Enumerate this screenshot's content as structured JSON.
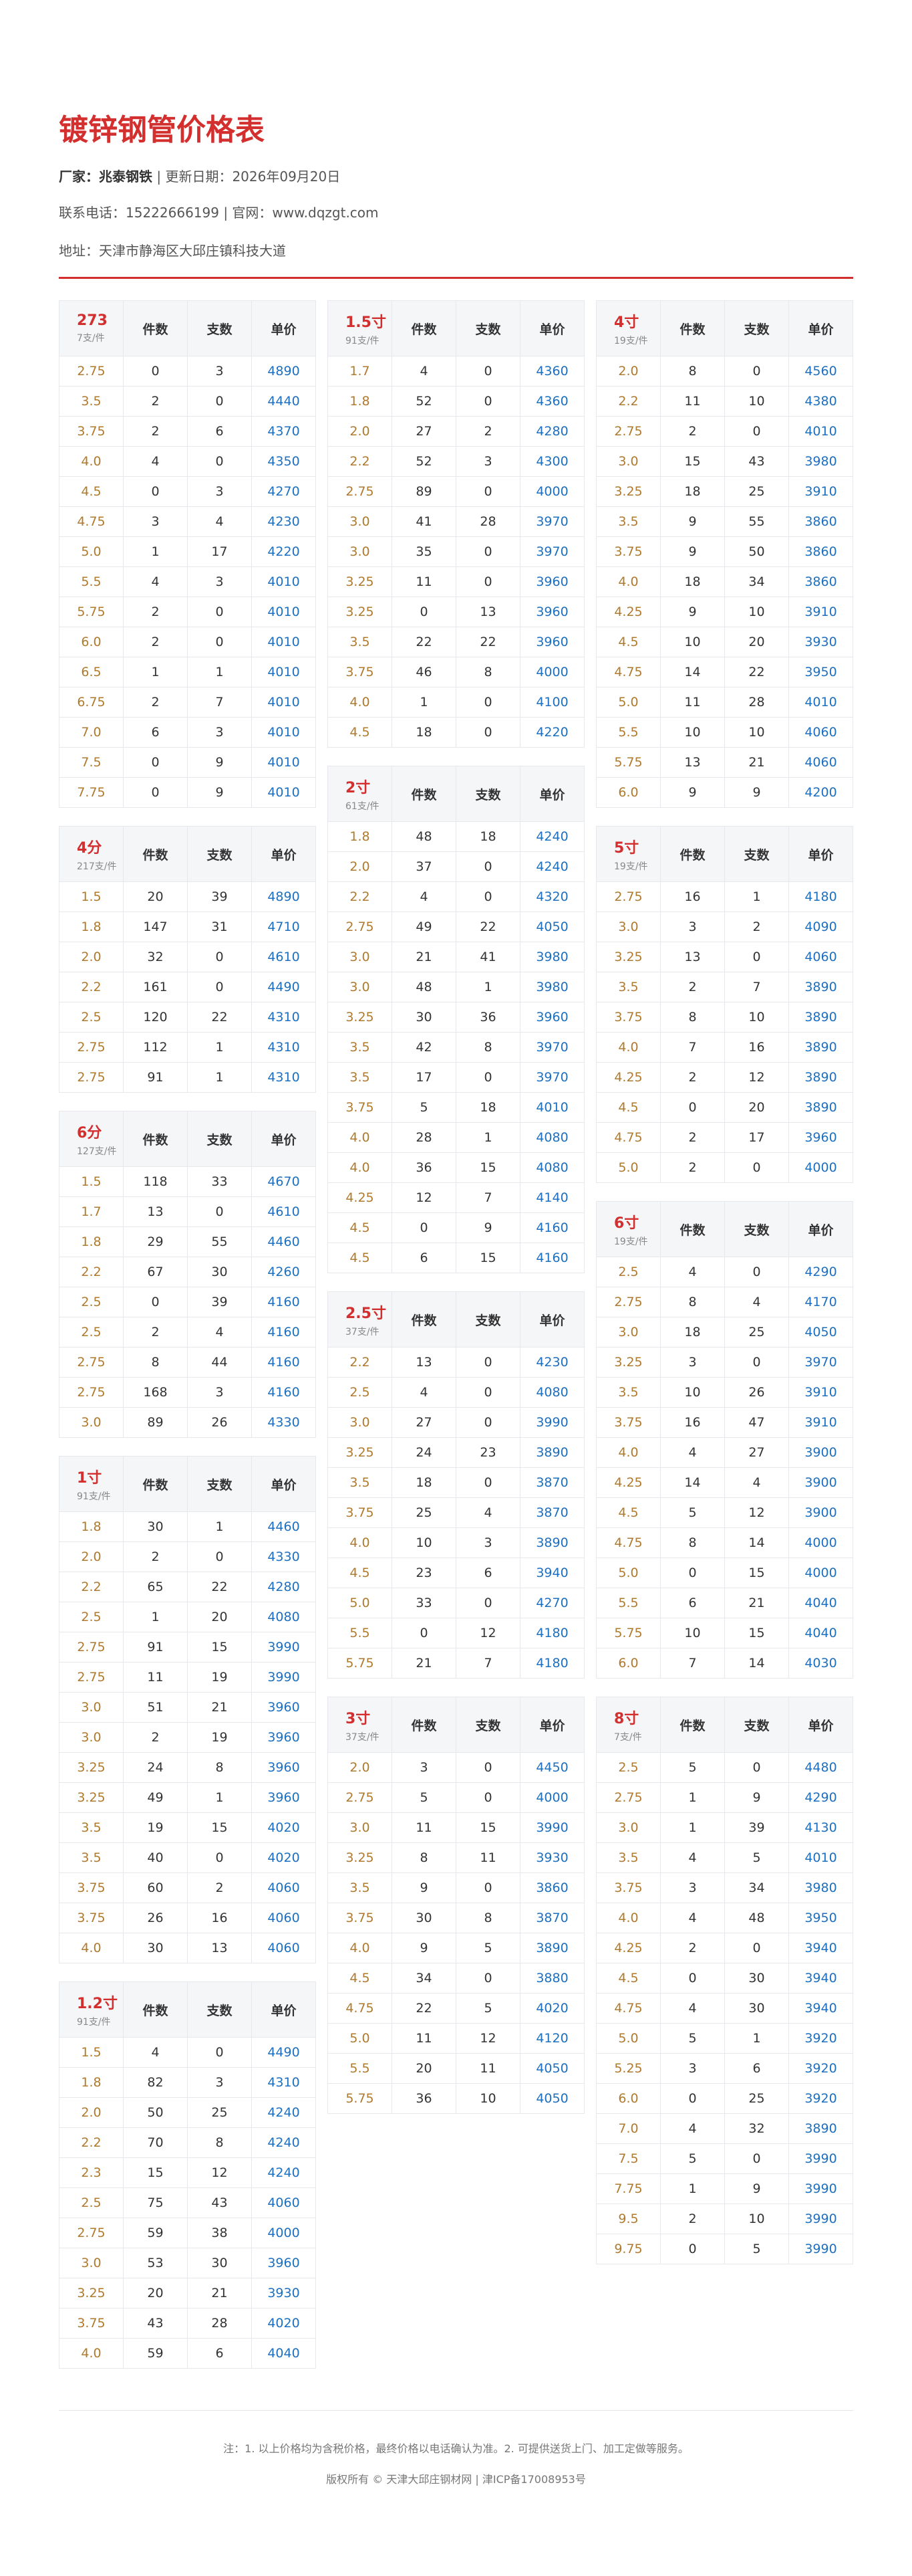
{
  "header": {
    "title": "镀锌钢管价格表",
    "maker": "厂家：兆泰钢铁",
    "updated": "| 更新日期：2026年09月20日",
    "contact": "联系电话：15222666199 | 官网：www.dqzgt.com",
    "address": "地址：天津市静海区大邱庄镇科技大道"
  },
  "columns": [
    "件数",
    "支数",
    "单价"
  ],
  "tables": [
    {
      "name": "273",
      "sub": "7支/件",
      "rows": [
        [
          "2.75",
          0,
          3,
          4890
        ],
        [
          "3.5",
          2,
          0,
          4440
        ],
        [
          "3.75",
          2,
          6,
          4370
        ],
        [
          "4.0",
          4,
          0,
          4350
        ],
        [
          "4.5",
          0,
          3,
          4270
        ],
        [
          "4.75",
          3,
          4,
          4230
        ],
        [
          "5.0",
          1,
          17,
          4220
        ],
        [
          "5.5",
          4,
          3,
          4010
        ],
        [
          "5.75",
          2,
          0,
          4010
        ],
        [
          "6.0",
          2,
          0,
          4010
        ],
        [
          "6.5",
          1,
          1,
          4010
        ],
        [
          "6.75",
          2,
          7,
          4010
        ],
        [
          "7.0",
          6,
          3,
          4010
        ],
        [
          "7.5",
          0,
          9,
          4010
        ],
        [
          "7.75",
          0,
          9,
          4010
        ]
      ]
    },
    {
      "name": "4分",
      "sub": "217支/件",
      "rows": [
        [
          "1.5",
          20,
          39,
          4890
        ],
        [
          "1.8",
          147,
          31,
          4710
        ],
        [
          "2.0",
          32,
          0,
          4610
        ],
        [
          "2.2",
          161,
          0,
          4490
        ],
        [
          "2.5",
          120,
          22,
          4310
        ],
        [
          "2.75",
          112,
          1,
          4310
        ],
        [
          "2.75",
          91,
          1,
          4310
        ]
      ]
    },
    {
      "name": "6分",
      "sub": "127支/件",
      "rows": [
        [
          "1.5",
          118,
          33,
          4670
        ],
        [
          "1.7",
          13,
          0,
          4610
        ],
        [
          "1.8",
          29,
          55,
          4460
        ],
        [
          "2.2",
          67,
          30,
          4260
        ],
        [
          "2.5",
          0,
          39,
          4160
        ],
        [
          "2.5",
          2,
          4,
          4160
        ],
        [
          "2.75",
          8,
          44,
          4160
        ],
        [
          "2.75",
          168,
          3,
          4160
        ],
        [
          "3.0",
          89,
          26,
          4330
        ]
      ]
    },
    {
      "name": "1寸",
      "sub": "91支/件",
      "rows": [
        [
          "1.8",
          30,
          1,
          4460
        ],
        [
          "2.0",
          2,
          0,
          4330
        ],
        [
          "2.2",
          65,
          22,
          4280
        ],
        [
          "2.5",
          1,
          20,
          4080
        ],
        [
          "2.75",
          91,
          15,
          3990
        ],
        [
          "2.75",
          11,
          19,
          3990
        ],
        [
          "3.0",
          51,
          21,
          3960
        ],
        [
          "3.0",
          2,
          19,
          3960
        ],
        [
          "3.25",
          24,
          8,
          3960
        ],
        [
          "3.25",
          49,
          1,
          3960
        ],
        [
          "3.5",
          19,
          15,
          4020
        ],
        [
          "3.5",
          40,
          0,
          4020
        ],
        [
          "3.75",
          60,
          2,
          4060
        ],
        [
          "3.75",
          26,
          16,
          4060
        ],
        [
          "4.0",
          30,
          13,
          4060
        ]
      ]
    },
    {
      "name": "1.2寸",
      "sub": "91支/件",
      "rows": [
        [
          "1.5",
          4,
          0,
          4490
        ],
        [
          "1.8",
          82,
          3,
          4310
        ],
        [
          "2.0",
          50,
          25,
          4240
        ],
        [
          "2.2",
          70,
          8,
          4240
        ],
        [
          "2.3",
          15,
          12,
          4240
        ],
        [
          "2.5",
          75,
          43,
          4060
        ],
        [
          "2.75",
          59,
          38,
          4000
        ],
        [
          "3.0",
          53,
          30,
          3960
        ],
        [
          "3.25",
          20,
          21,
          3930
        ],
        [
          "3.75",
          43,
          28,
          4020
        ],
        [
          "4.0",
          59,
          6,
          4040
        ]
      ]
    },
    {
      "name": "1.5寸",
      "sub": "91支/件",
      "rows": [
        [
          "1.7",
          4,
          0,
          4360
        ],
        [
          "1.8",
          52,
          0,
          4360
        ],
        [
          "2.0",
          27,
          2,
          4280
        ],
        [
          "2.2",
          52,
          3,
          4300
        ],
        [
          "2.75",
          89,
          0,
          4000
        ],
        [
          "3.0",
          41,
          28,
          3970
        ],
        [
          "3.0",
          35,
          0,
          3970
        ],
        [
          "3.25",
          11,
          0,
          3960
        ],
        [
          "3.25",
          0,
          13,
          3960
        ],
        [
          "3.5",
          22,
          22,
          3960
        ],
        [
          "3.75",
          46,
          8,
          4000
        ],
        [
          "4.0",
          1,
          0,
          4100
        ],
        [
          "4.5",
          18,
          0,
          4220
        ]
      ]
    },
    {
      "name": "2寸",
      "sub": "61支/件",
      "rows": [
        [
          "1.8",
          48,
          18,
          4240
        ],
        [
          "2.0",
          37,
          0,
          4240
        ],
        [
          "2.2",
          4,
          0,
          4320
        ],
        [
          "2.75",
          49,
          22,
          4050
        ],
        [
          "3.0",
          21,
          41,
          3980
        ],
        [
          "3.0",
          48,
          1,
          3980
        ],
        [
          "3.25",
          30,
          36,
          3960
        ],
        [
          "3.5",
          42,
          8,
          3970
        ],
        [
          "3.5",
          17,
          0,
          3970
        ],
        [
          "3.75",
          5,
          18,
          4010
        ],
        [
          "4.0",
          28,
          1,
          4080
        ],
        [
          "4.0",
          36,
          15,
          4080
        ],
        [
          "4.25",
          12,
          7,
          4140
        ],
        [
          "4.5",
          0,
          9,
          4160
        ],
        [
          "4.5",
          6,
          15,
          4160
        ]
      ]
    },
    {
      "name": "2.5寸",
      "sub": "37支/件",
      "rows": [
        [
          "2.2",
          13,
          0,
          4230
        ],
        [
          "2.5",
          4,
          0,
          4080
        ],
        [
          "3.0",
          27,
          0,
          3990
        ],
        [
          "3.25",
          24,
          23,
          3890
        ],
        [
          "3.5",
          18,
          0,
          3870
        ],
        [
          "3.75",
          25,
          4,
          3870
        ],
        [
          "4.0",
          10,
          3,
          3890
        ],
        [
          "4.5",
          23,
          6,
          3940
        ],
        [
          "5.0",
          33,
          0,
          4270
        ],
        [
          "5.5",
          0,
          12,
          4180
        ],
        [
          "5.75",
          21,
          7,
          4180
        ]
      ]
    },
    {
      "name": "3寸",
      "sub": "37支/件",
      "rows": [
        [
          "2.0",
          3,
          0,
          4450
        ],
        [
          "2.75",
          5,
          0,
          4000
        ],
        [
          "3.0",
          11,
          15,
          3990
        ],
        [
          "3.25",
          8,
          11,
          3930
        ],
        [
          "3.5",
          9,
          0,
          3860
        ],
        [
          "3.75",
          30,
          8,
          3870
        ],
        [
          "4.0",
          9,
          5,
          3890
        ],
        [
          "4.5",
          34,
          0,
          3880
        ],
        [
          "4.75",
          22,
          5,
          4020
        ],
        [
          "5.0",
          11,
          12,
          4120
        ],
        [
          "5.5",
          20,
          11,
          4050
        ],
        [
          "5.75",
          36,
          10,
          4050
        ]
      ]
    },
    {
      "name": "4寸",
      "sub": "19支/件",
      "rows": [
        [
          "2.0",
          8,
          0,
          4560
        ],
        [
          "2.2",
          11,
          10,
          4380
        ],
        [
          "2.75",
          2,
          0,
          4010
        ],
        [
          "3.0",
          15,
          43,
          3980
        ],
        [
          "3.25",
          18,
          25,
          3910
        ],
        [
          "3.5",
          9,
          55,
          3860
        ],
        [
          "3.75",
          9,
          50,
          3860
        ],
        [
          "4.0",
          18,
          34,
          3860
        ],
        [
          "4.25",
          9,
          10,
          3910
        ],
        [
          "4.5",
          10,
          20,
          3930
        ],
        [
          "4.75",
          14,
          22,
          3950
        ],
        [
          "5.0",
          11,
          28,
          4010
        ],
        [
          "5.5",
          10,
          10,
          4060
        ],
        [
          "5.75",
          13,
          21,
          4060
        ],
        [
          "6.0",
          9,
          9,
          4200
        ]
      ]
    },
    {
      "name": "5寸",
      "sub": "19支/件",
      "rows": [
        [
          "2.75",
          16,
          1,
          4180
        ],
        [
          "3.0",
          3,
          2,
          4090
        ],
        [
          "3.25",
          13,
          0,
          4060
        ],
        [
          "3.5",
          2,
          7,
          3890
        ],
        [
          "3.75",
          8,
          10,
          3890
        ],
        [
          "4.0",
          7,
          16,
          3890
        ],
        [
          "4.25",
          2,
          12,
          3890
        ],
        [
          "4.5",
          0,
          20,
          3890
        ],
        [
          "4.75",
          2,
          17,
          3960
        ],
        [
          "5.0",
          2,
          0,
          4000
        ]
      ]
    },
    {
      "name": "6寸",
      "sub": "19支/件",
      "rows": [
        [
          "2.5",
          4,
          0,
          4290
        ],
        [
          "2.75",
          8,
          4,
          4170
        ],
        [
          "3.0",
          18,
          25,
          4050
        ],
        [
          "3.25",
          3,
          0,
          3970
        ],
        [
          "3.5",
          10,
          26,
          3910
        ],
        [
          "3.75",
          16,
          47,
          3910
        ],
        [
          "4.0",
          4,
          27,
          3900
        ],
        [
          "4.25",
          14,
          4,
          3900
        ],
        [
          "4.5",
          5,
          12,
          3900
        ],
        [
          "4.75",
          8,
          14,
          4000
        ],
        [
          "5.0",
          0,
          15,
          4000
        ],
        [
          "5.5",
          6,
          21,
          4040
        ],
        [
          "5.75",
          10,
          15,
          4040
        ],
        [
          "6.0",
          7,
          14,
          4030
        ]
      ]
    },
    {
      "name": "8寸",
      "sub": "7支/件",
      "rows": [
        [
          "2.5",
          5,
          0,
          4480
        ],
        [
          "2.75",
          1,
          9,
          4290
        ],
        [
          "3.0",
          1,
          39,
          4130
        ],
        [
          "3.5",
          4,
          5,
          4010
        ],
        [
          "3.75",
          3,
          34,
          3980
        ],
        [
          "4.0",
          4,
          48,
          3950
        ],
        [
          "4.25",
          2,
          0,
          3940
        ],
        [
          "4.5",
          0,
          30,
          3940
        ],
        [
          "4.75",
          4,
          30,
          3940
        ],
        [
          "5.0",
          5,
          1,
          3920
        ],
        [
          "5.25",
          3,
          6,
          3920
        ],
        [
          "6.0",
          0,
          25,
          3920
        ],
        [
          "7.0",
          4,
          32,
          3890
        ],
        [
          "7.5",
          5,
          0,
          3990
        ],
        [
          "7.75",
          1,
          9,
          3990
        ],
        [
          "9.5",
          2,
          10,
          3990
        ],
        [
          "9.75",
          0,
          5,
          3990
        ]
      ]
    }
  ],
  "footer": {
    "note": "注：1. 以上价格均为含税价格，最终价格以电话确认为准。2. 可提供送货上门、加工定做等服务。",
    "copyright": "版权所有 © 天津大邱庄钢材网 | 津ICP备17008953号"
  }
}
